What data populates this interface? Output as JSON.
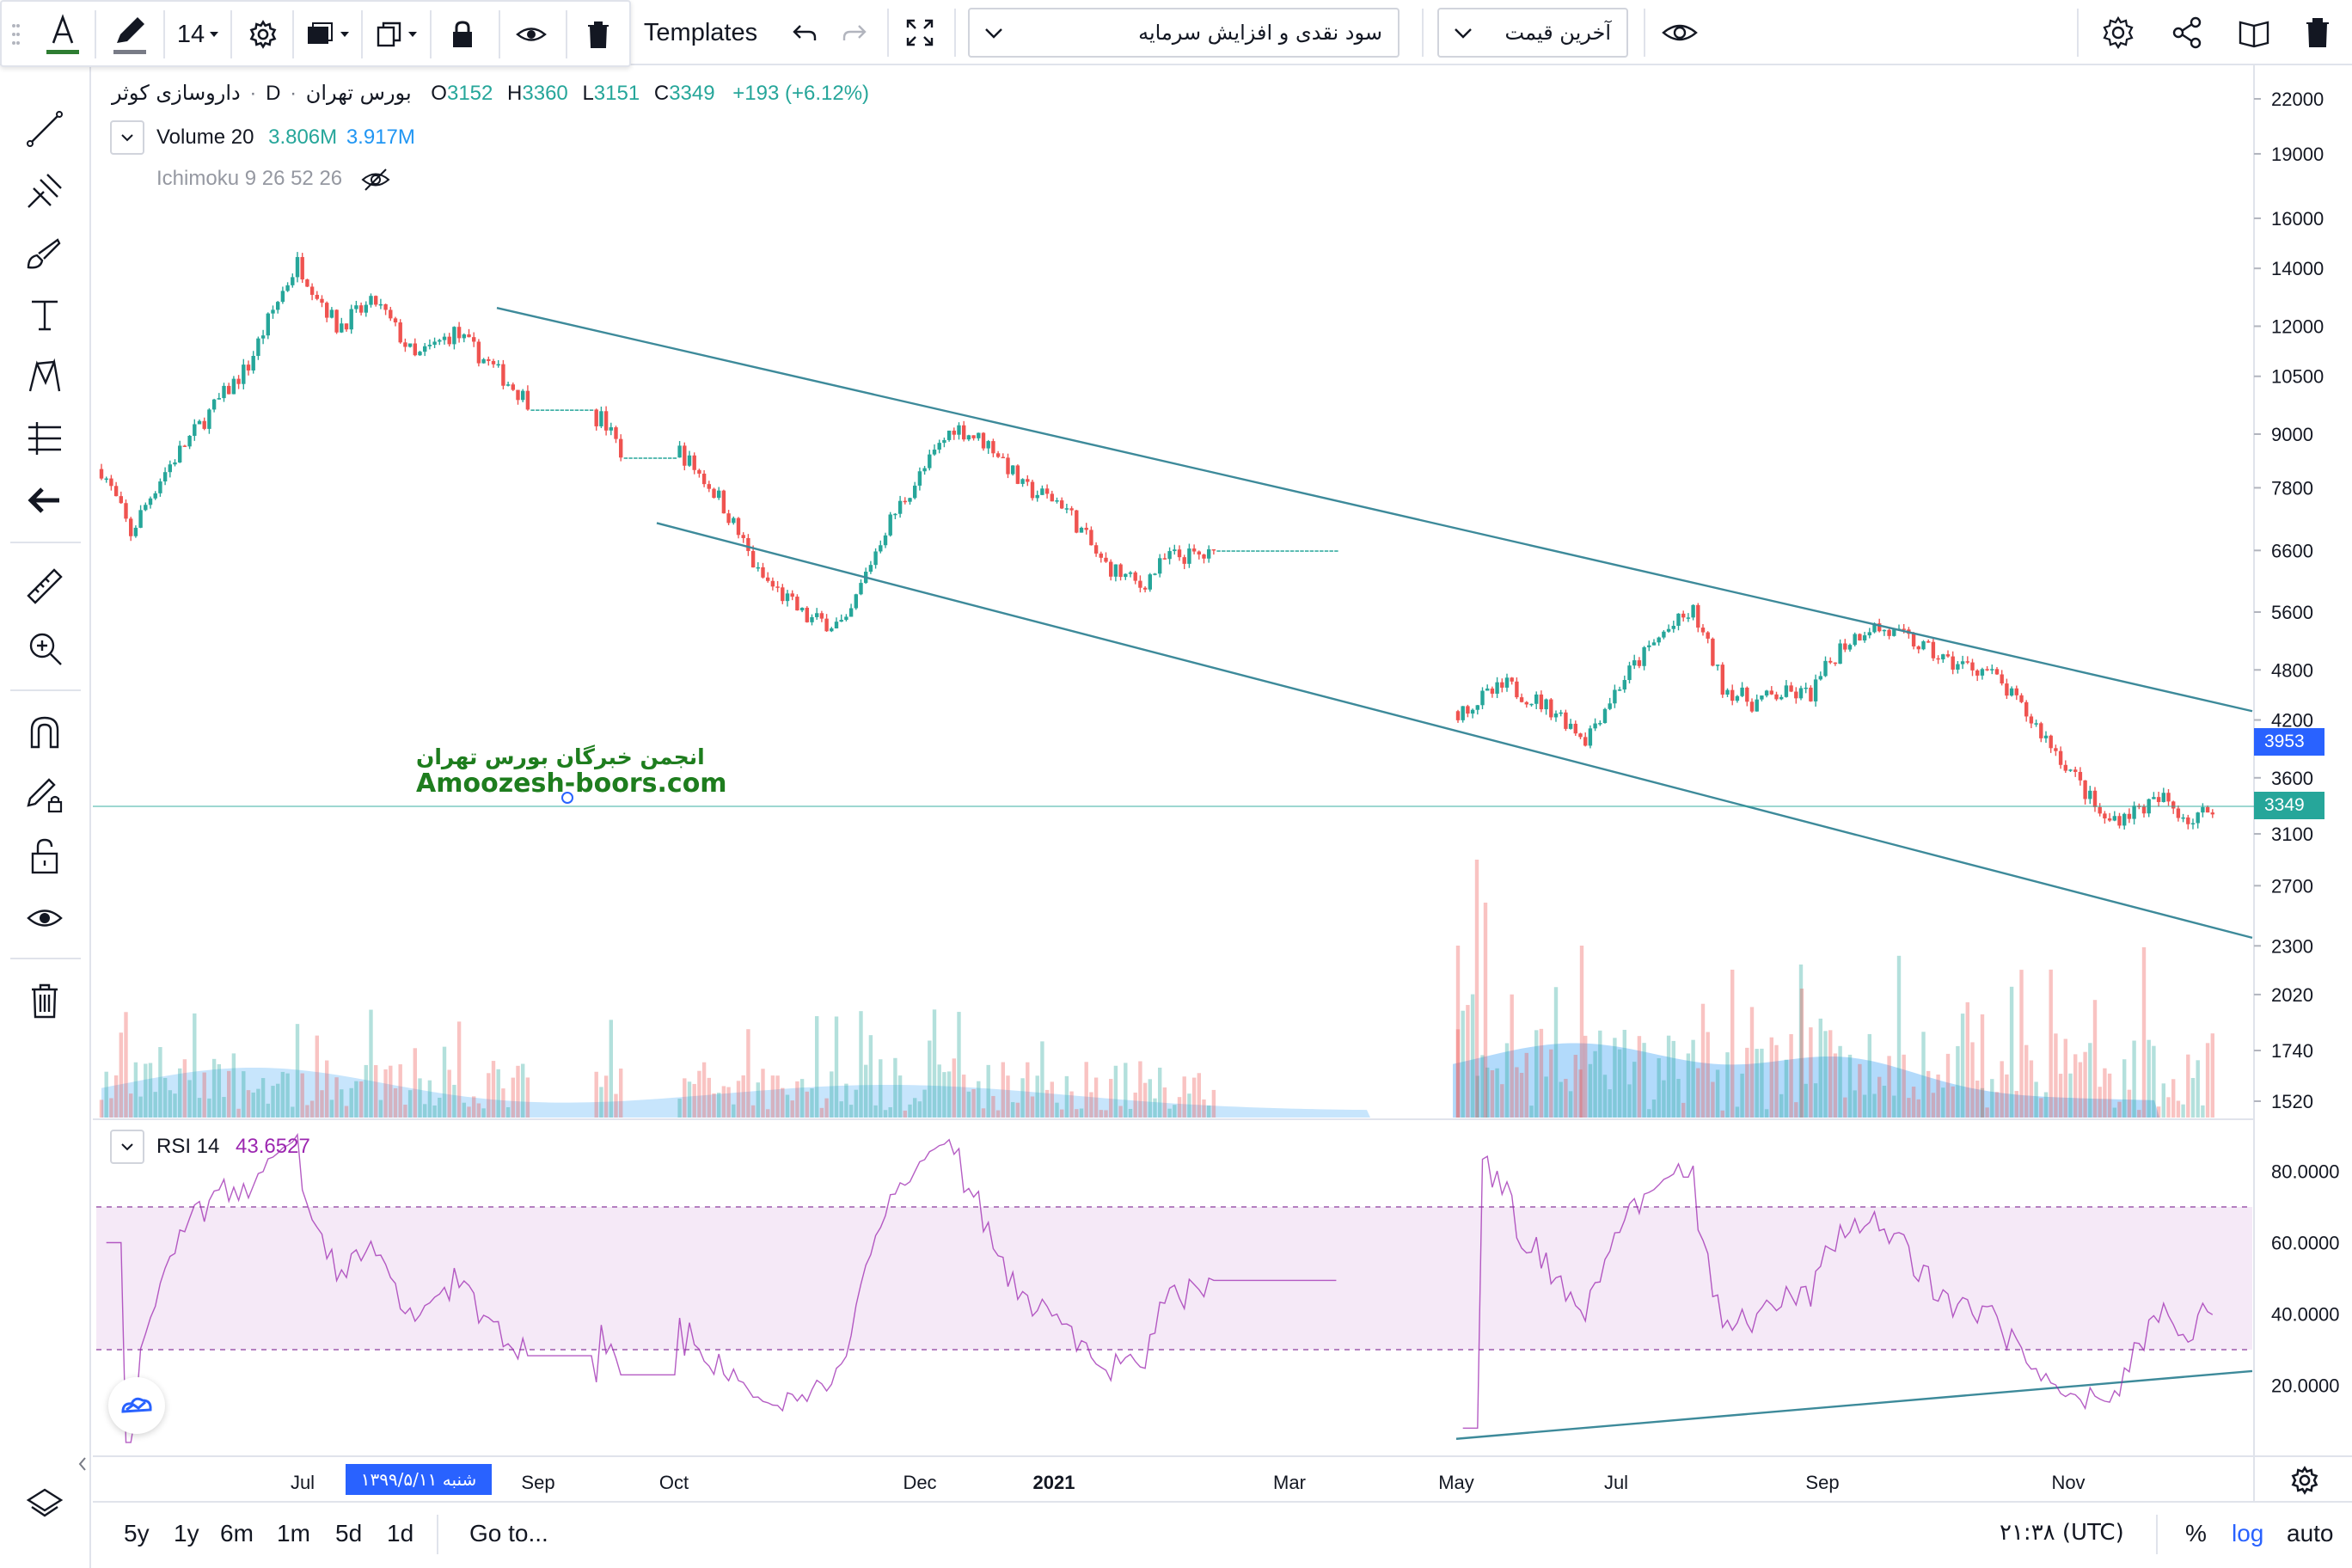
{
  "toolbar": {
    "font_size": "14",
    "templates_label": "Templates",
    "study_template": "سود نقدی و افزایش سرمایه",
    "price_source": "آخرین قیمت"
  },
  "legend": {
    "symbol": "داروسازی کوثر",
    "interval": "D",
    "exchange": "بورس تهران",
    "o_label": "O",
    "o_value": "3152",
    "h_label": "H",
    "h_value": "3360",
    "l_label": "L",
    "l_value": "3151",
    "c_label": "C",
    "c_value": "3349",
    "change": "+193 (+6.12%)",
    "volume_title": "Volume 20",
    "volume_val1": "3.806M",
    "volume_val2": "3.917M",
    "ichimoku_title": "Ichimoku 9 26 52 26",
    "rsi_title": "RSI 14",
    "rsi_value": "43.6527"
  },
  "price_tags": {
    "line_value": "3953",
    "last_price": "3349"
  },
  "crosshair_date": "شنبه ۱۳۹۹/۵/۱۱",
  "watermark": {
    "line1": "انجمن خبرگان بورس تهران",
    "line2": "Amoozesh-boors.com"
  },
  "bottombar": {
    "ranges": [
      "5y",
      "1y",
      "6m",
      "1m",
      "5d",
      "1d"
    ],
    "goto": "Go to...",
    "time": "۲۱:۳۸ (UTC)",
    "percent": "%",
    "log": "log",
    "auto": "auto"
  },
  "colors": {
    "up": "#26a69a",
    "down": "#ef5350",
    "rsi": "#9c27b0",
    "accent": "#2962ff",
    "trend": "#3d8a9a"
  },
  "icons": [
    "text-icon",
    "pencil-icon",
    "gear-icon",
    "fill-icon",
    "copy-icon",
    "lock-icon",
    "eye-icon",
    "trash-icon",
    "undo-icon",
    "redo-icon",
    "fullscreen-icon",
    "settings-icon",
    "share-icon",
    "book-icon",
    "delete-icon",
    "layers-icon"
  ],
  "chart_data": {
    "type": "candlestick",
    "scale": "log",
    "y_ticks": [
      1520,
      1740,
      2020,
      2300,
      2700,
      3100,
      3600,
      4200,
      4800,
      5600,
      6600,
      7800,
      9000,
      10500,
      12000,
      14000,
      16000,
      19000,
      22000
    ],
    "y_tick_labels": [
      "1520",
      "1740",
      "2020",
      "2300",
      "2700",
      "3100",
      "3600",
      "4200",
      "4800",
      "5600",
      "6600",
      "7800",
      "9000",
      "10500",
      "12000",
      "14000",
      "16000",
      "19000",
      "22000"
    ],
    "x_tick_labels": [
      "Jul",
      "Sep",
      "Oct",
      "Dec",
      "2021",
      "Mar",
      "May",
      "Jul",
      "Sep",
      "Nov"
    ],
    "rsi_ticks": [
      "20.0000",
      "40.0000",
      "60.0000",
      "80.0000"
    ],
    "rsi_band": [
      30,
      70
    ],
    "price_anchors": [
      [
        0,
        8200
      ],
      [
        6,
        6900
      ],
      [
        12,
        8000
      ],
      [
        20,
        9200
      ],
      [
        30,
        10800
      ],
      [
        40,
        14200
      ],
      [
        48,
        12000
      ],
      [
        56,
        12800
      ],
      [
        64,
        11000
      ],
      [
        72,
        11800
      ],
      [
        78,
        11000
      ],
      [
        84,
        10200
      ],
      [
        90,
        9500
      ],
      [
        102,
        9400
      ],
      [
        106,
        8600
      ],
      [
        118,
        8600
      ],
      [
        126,
        7600
      ],
      [
        134,
        6200
      ],
      [
        144,
        5500
      ],
      [
        152,
        5400
      ],
      [
        160,
        7000
      ],
      [
        168,
        8200
      ],
      [
        174,
        9200
      ],
      [
        182,
        8700
      ],
      [
        188,
        7800
      ],
      [
        196,
        7500
      ],
      [
        204,
        6400
      ],
      [
        212,
        6000
      ],
      [
        218,
        6500
      ],
      [
        230,
        6500
      ],
      [
        252,
        6300
      ]
    ],
    "price_anchors_2": [
      [
        0,
        4300
      ],
      [
        10,
        4600
      ],
      [
        20,
        4300
      ],
      [
        26,
        4000
      ],
      [
        34,
        4700
      ],
      [
        42,
        5300
      ],
      [
        48,
        5600
      ],
      [
        54,
        4600
      ],
      [
        60,
        4400
      ],
      [
        66,
        4500
      ],
      [
        72,
        4500
      ],
      [
        78,
        5100
      ],
      [
        84,
        5400
      ],
      [
        92,
        5200
      ],
      [
        100,
        4900
      ],
      [
        108,
        4800
      ],
      [
        114,
        4400
      ],
      [
        120,
        4000
      ],
      [
        126,
        3600
      ],
      [
        132,
        3200
      ],
      [
        138,
        3300
      ],
      [
        144,
        3400
      ],
      [
        150,
        3200
      ],
      [
        154,
        3349
      ]
    ],
    "trendlines": [
      {
        "name": "channel-upper",
        "from": [
          "Jun",
          12600
        ],
        "to": [
          "Dec (next year)",
          4300
        ]
      },
      {
        "name": "channel-lower",
        "from": [
          "Aug",
          7100
        ],
        "to": [
          "Dec (next year)",
          2350
        ]
      },
      {
        "name": "rsi-support",
        "from": [
          "May",
          5
        ],
        "to": [
          "Dec",
          24
        ]
      }
    ],
    "last": {
      "open": 3152,
      "high": 3360,
      "low": 3151,
      "close": 3349
    }
  }
}
